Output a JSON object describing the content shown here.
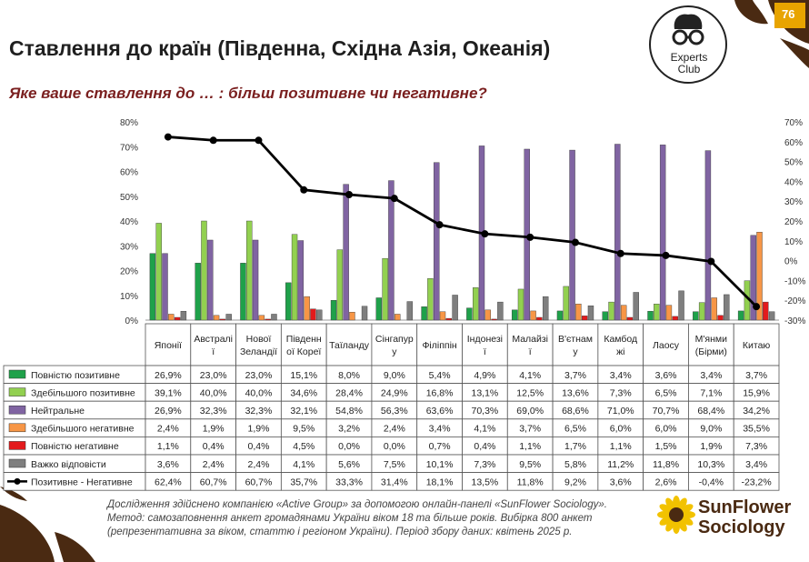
{
  "header": {
    "title": "Ставлення до країн (Південна, Східна Азія, Океанія)",
    "subtitle": "Яке ваше ставлення до … : більш позитивне чи негативне?",
    "page_number": "76"
  },
  "logo": {
    "line1": "Experts",
    "line2": "Club"
  },
  "brand": {
    "line1": "SunFlower",
    "line2": "Sociology"
  },
  "footnote": "Дослідження здійснено компанією «Active Group» за допомогою онлайн-панелі «SunFlower Sociology». Метод: самозаповнення анкет громадянами України віком 18 та більше років. Вибірка 800 анкет (репрезентативна за віком, статтю і регіоном України). Період збору даних: квітень 2025 р.",
  "colors": {
    "brand_brown": "#4a2a12",
    "subtitle_red": "#7a1f1f",
    "sunflower_yellow": "#f2c200"
  },
  "chart_data": {
    "type": "bar",
    "categories": [
      [
        "Японії"
      ],
      [
        "Австралі",
        "ї"
      ],
      [
        "Нової",
        "Зеландії"
      ],
      [
        "Південн",
        "ої Кореї"
      ],
      [
        "Таїланду"
      ],
      [
        "Сінгапур",
        "у"
      ],
      [
        "Філіппін"
      ],
      [
        "Індонезі",
        "ї"
      ],
      [
        "Малайзі",
        "ї"
      ],
      [
        "В'єтнам",
        "у"
      ],
      [
        "Камбод",
        "жі"
      ],
      [
        "Лаосу"
      ],
      [
        "М'янми",
        "(Бірми)"
      ],
      [
        "Китаю"
      ]
    ],
    "series": [
      {
        "name": "Повністю позитивне",
        "color": "#1fa14a",
        "values": [
          26.9,
          23.0,
          23.0,
          15.1,
          8.0,
          9.0,
          5.4,
          4.9,
          4.1,
          3.7,
          3.4,
          3.6,
          3.4,
          3.7
        ],
        "labels": [
          "26,9%",
          "23,0%",
          "23,0%",
          "15,1%",
          "8,0%",
          "9,0%",
          "5,4%",
          "4,9%",
          "4,1%",
          "3,7%",
          "3,4%",
          "3,6%",
          "3,4%",
          "3,7%"
        ]
      },
      {
        "name": "Здебільшого позитивне",
        "color": "#92d050",
        "values": [
          39.1,
          40.0,
          40.0,
          34.6,
          28.4,
          24.9,
          16.8,
          13.1,
          12.5,
          13.6,
          7.3,
          6.5,
          7.1,
          15.9
        ],
        "labels": [
          "39,1%",
          "40,0%",
          "40,0%",
          "34,6%",
          "28,4%",
          "24,9%",
          "16,8%",
          "13,1%",
          "12,5%",
          "13,6%",
          "7,3%",
          "6,5%",
          "7,1%",
          "15,9%"
        ]
      },
      {
        "name": "Нейтральне",
        "color": "#8064a2",
        "values": [
          26.9,
          32.3,
          32.3,
          32.1,
          54.8,
          56.3,
          63.6,
          70.3,
          69.0,
          68.6,
          71.0,
          70.7,
          68.4,
          34.2
        ],
        "labels": [
          "26,9%",
          "32,3%",
          "32,3%",
          "32,1%",
          "54,8%",
          "56,3%",
          "63,6%",
          "70,3%",
          "69,0%",
          "68,6%",
          "71,0%",
          "70,7%",
          "68,4%",
          "34,2%"
        ]
      },
      {
        "name": "Здебільшого негативне",
        "color": "#f79646",
        "values": [
          2.4,
          1.9,
          1.9,
          9.5,
          3.2,
          2.4,
          3.4,
          4.1,
          3.7,
          6.5,
          6.0,
          6.0,
          9.0,
          35.5
        ],
        "labels": [
          "2,4%",
          "1,9%",
          "1,9%",
          "9,5%",
          "3,2%",
          "2,4%",
          "3,4%",
          "4,1%",
          "3,7%",
          "6,5%",
          "6,0%",
          "6,0%",
          "9,0%",
          "35,5%"
        ]
      },
      {
        "name": "Повністю негативне",
        "color": "#e31a1c",
        "values": [
          1.1,
          0.4,
          0.4,
          4.5,
          0.0,
          0.0,
          0.7,
          0.4,
          1.1,
          1.7,
          1.1,
          1.5,
          1.9,
          7.3
        ],
        "labels": [
          "1,1%",
          "0,4%",
          "0,4%",
          "4,5%",
          "0,0%",
          "0,0%",
          "0,7%",
          "0,4%",
          "1,1%",
          "1,7%",
          "1,1%",
          "1,5%",
          "1,9%",
          "7,3%"
        ]
      },
      {
        "name": "Важко відповісти",
        "color": "#7f7f7f",
        "values": [
          3.6,
          2.4,
          2.4,
          4.1,
          5.6,
          7.5,
          10.1,
          7.3,
          9.5,
          5.8,
          11.2,
          11.8,
          10.3,
          3.4
        ],
        "labels": [
          "3,6%",
          "2,4%",
          "2,4%",
          "4,1%",
          "5,6%",
          "7,5%",
          "10,1%",
          "7,3%",
          "9,5%",
          "5,8%",
          "11,2%",
          "11,8%",
          "10,3%",
          "3,4%"
        ]
      }
    ],
    "line_series": {
      "name": "Позитивне - Негативне",
      "color": "#000000",
      "values": [
        62.4,
        60.7,
        60.7,
        35.7,
        33.3,
        31.4,
        18.1,
        13.5,
        11.8,
        9.2,
        3.6,
        2.6,
        -0.4,
        -23.2
      ],
      "labels": [
        "62,4%",
        "60,7%",
        "60,7%",
        "35,7%",
        "33,3%",
        "31,4%",
        "18,1%",
        "13,5%",
        "11,8%",
        "9,2%",
        "3,6%",
        "2,6%",
        "-0,4%",
        "-23,2%"
      ]
    },
    "ylim": [
      0,
      80
    ],
    "yticks": [
      "0%",
      "10%",
      "20%",
      "30%",
      "40%",
      "50%",
      "60%",
      "70%",
      "80%"
    ],
    "y2lim": [
      -30,
      70
    ],
    "y2ticks": [
      "-30%",
      "-20%",
      "-10%",
      "0%",
      "10%",
      "20%",
      "30%",
      "40%",
      "50%",
      "60%",
      "70%"
    ],
    "legend": "table-below"
  }
}
